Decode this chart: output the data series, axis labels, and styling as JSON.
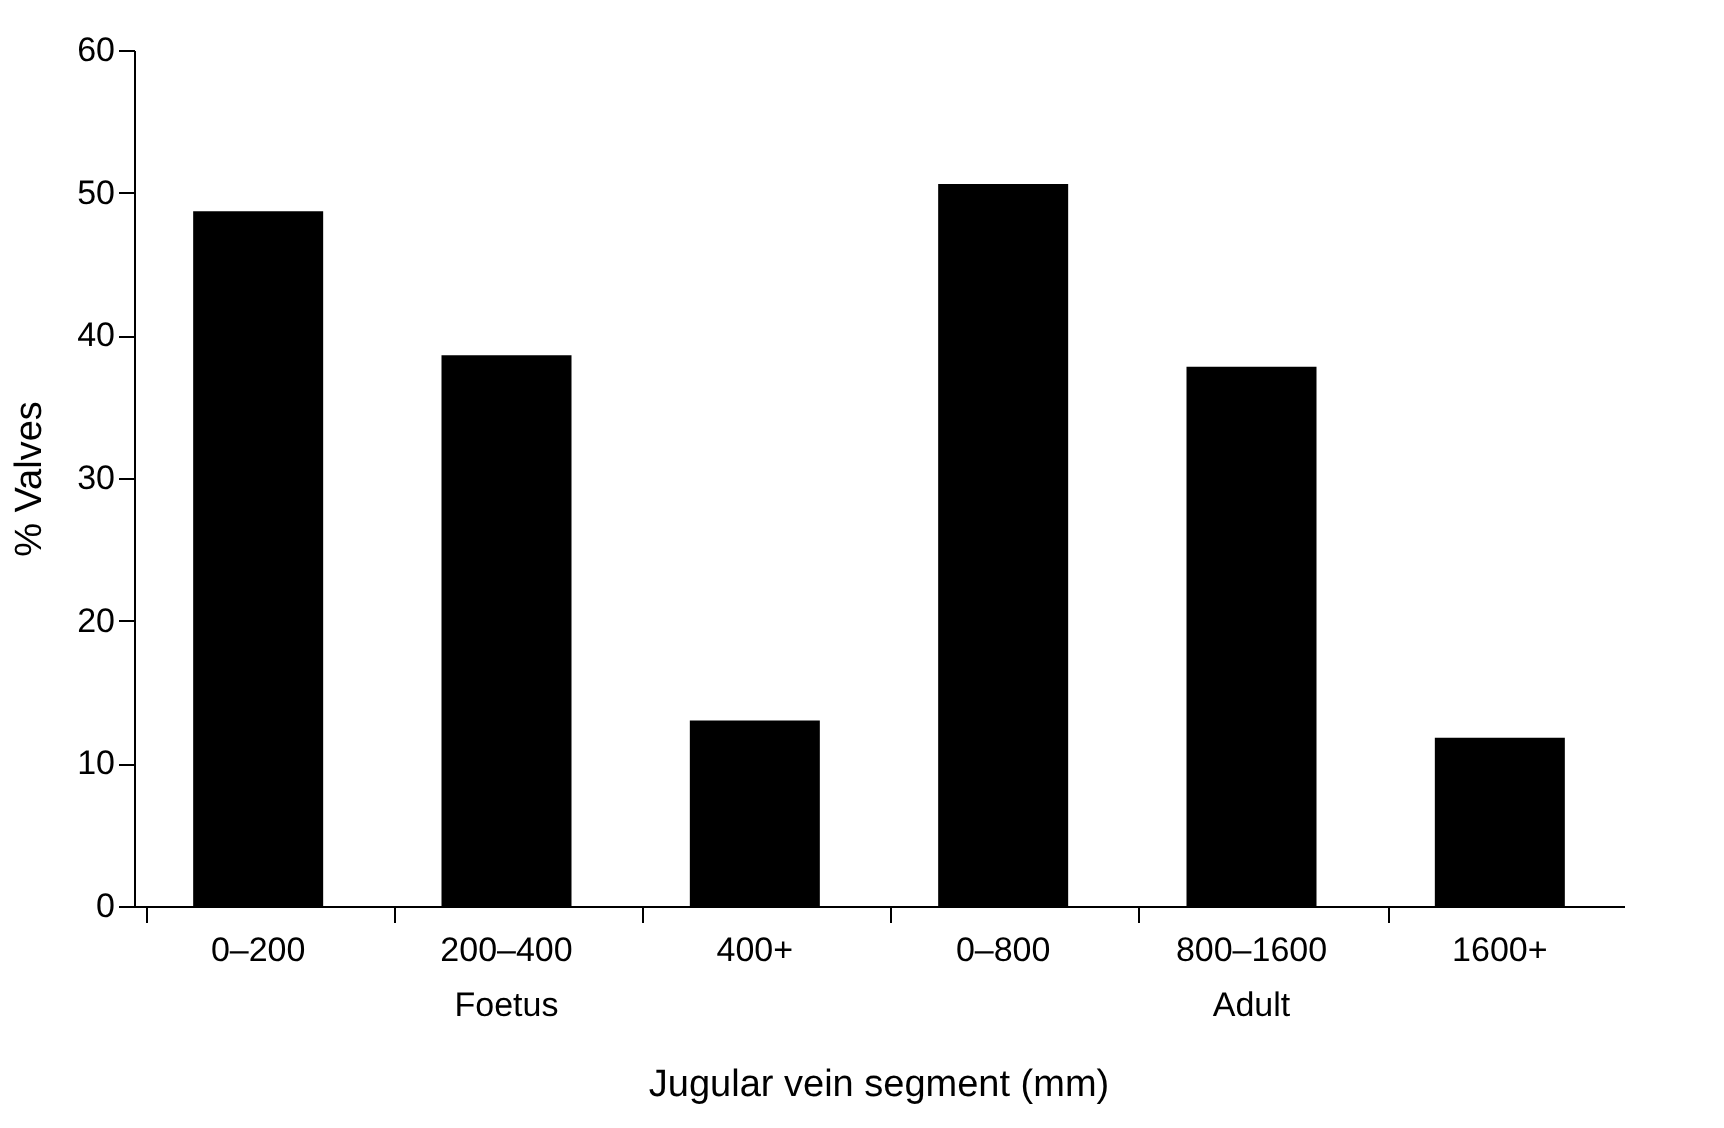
{
  "chart_data": {
    "type": "bar",
    "xlabel": "Jugular vein segment (mm)",
    "ylabel": "% Valves",
    "categories": [
      "0–200",
      "200–400",
      "400+",
      "0–800",
      "800–1600",
      "1600+"
    ],
    "series": [
      {
        "color": "#000000",
        "values": [
          48.7,
          38.6,
          13.0,
          50.6,
          37.8,
          11.8
        ]
      }
    ],
    "ylim": [
      0,
      60
    ],
    "yticks": [
      0,
      10,
      20,
      30,
      40,
      50,
      60
    ],
    "grid": false,
    "annotations": [
      "Foetus",
      "Adult"
    ]
  }
}
